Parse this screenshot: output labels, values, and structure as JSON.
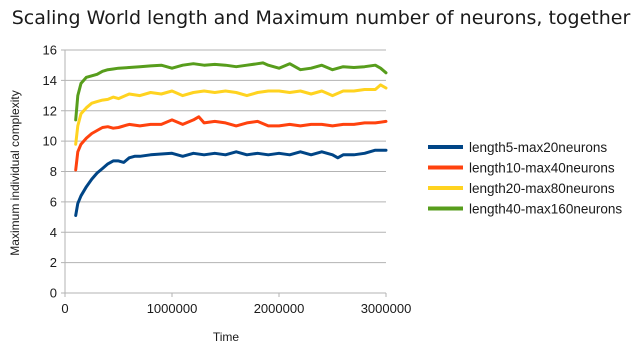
{
  "chart_data": {
    "type": "line",
    "title": "Scaling World length and Maximum number of neurons, together",
    "xlabel": "Time",
    "ylabel": "Maximum individual complexity",
    "xlim": [
      0,
      3000000
    ],
    "ylim": [
      0,
      16
    ],
    "xticks": [
      0,
      1000000,
      2000000,
      3000000
    ],
    "xtick_labels": [
      "0",
      "1000000",
      "2000000",
      "3000000"
    ],
    "yticks": [
      0,
      2,
      4,
      6,
      8,
      10,
      12,
      14,
      16
    ],
    "ytick_labels": [
      "0",
      "2",
      "4",
      "6",
      "8",
      "10",
      "12",
      "14",
      "16"
    ],
    "grid": "horizontal",
    "legend_position": "right",
    "series": [
      {
        "name": "length5-max20neurons",
        "color": "#004586",
        "x": [
          100000,
          120000,
          150000,
          200000,
          250000,
          300000,
          350000,
          400000,
          450000,
          500000,
          550000,
          600000,
          650000,
          700000,
          800000,
          900000,
          1000000,
          1100000,
          1200000,
          1300000,
          1400000,
          1500000,
          1600000,
          1700000,
          1800000,
          1900000,
          2000000,
          2100000,
          2200000,
          2300000,
          2400000,
          2500000,
          2550000,
          2600000,
          2700000,
          2800000,
          2900000,
          3000000
        ],
        "y": [
          5.1,
          5.9,
          6.4,
          7.0,
          7.5,
          7.9,
          8.2,
          8.5,
          8.7,
          8.7,
          8.6,
          8.9,
          9.0,
          9.0,
          9.1,
          9.15,
          9.2,
          9.0,
          9.2,
          9.1,
          9.2,
          9.1,
          9.3,
          9.1,
          9.2,
          9.1,
          9.2,
          9.1,
          9.3,
          9.1,
          9.3,
          9.1,
          8.9,
          9.1,
          9.1,
          9.2,
          9.4,
          9.4
        ]
      },
      {
        "name": "length10-max40neurons",
        "color": "#ff420e",
        "x": [
          100000,
          120000,
          150000,
          200000,
          250000,
          300000,
          350000,
          400000,
          450000,
          500000,
          600000,
          700000,
          800000,
          900000,
          1000000,
          1100000,
          1200000,
          1250000,
          1300000,
          1400000,
          1500000,
          1600000,
          1700000,
          1800000,
          1900000,
          2000000,
          2100000,
          2200000,
          2300000,
          2400000,
          2500000,
          2600000,
          2700000,
          2800000,
          2900000,
          3000000
        ],
        "y": [
          8.1,
          9.3,
          9.8,
          10.2,
          10.5,
          10.7,
          10.9,
          10.95,
          10.85,
          10.9,
          11.1,
          11.0,
          11.1,
          11.1,
          11.4,
          11.1,
          11.4,
          11.6,
          11.2,
          11.3,
          11.2,
          11.0,
          11.2,
          11.3,
          11.0,
          11.0,
          11.1,
          11.0,
          11.1,
          11.1,
          11.0,
          11.1,
          11.1,
          11.2,
          11.2,
          11.3
        ]
      },
      {
        "name": "length20-max80neurons",
        "color": "#ffd320",
        "x": [
          100000,
          120000,
          150000,
          200000,
          250000,
          300000,
          350000,
          400000,
          450000,
          500000,
          600000,
          700000,
          800000,
          900000,
          1000000,
          1100000,
          1200000,
          1300000,
          1400000,
          1500000,
          1600000,
          1700000,
          1800000,
          1900000,
          2000000,
          2100000,
          2200000,
          2300000,
          2400000,
          2500000,
          2600000,
          2700000,
          2800000,
          2900000,
          2950000,
          3000000
        ],
        "y": [
          9.8,
          11.0,
          11.8,
          12.2,
          12.5,
          12.6,
          12.7,
          12.75,
          12.9,
          12.8,
          13.1,
          13.0,
          13.2,
          13.1,
          13.3,
          13.0,
          13.2,
          13.3,
          13.2,
          13.3,
          13.2,
          13.0,
          13.2,
          13.3,
          13.3,
          13.2,
          13.3,
          13.1,
          13.3,
          13.0,
          13.3,
          13.3,
          13.4,
          13.4,
          13.7,
          13.5
        ]
      },
      {
        "name": "length40-max160neurons",
        "color": "#579d1c",
        "x": [
          100000,
          120000,
          150000,
          200000,
          250000,
          300000,
          350000,
          400000,
          450000,
          500000,
          600000,
          700000,
          800000,
          900000,
          1000000,
          1100000,
          1200000,
          1300000,
          1400000,
          1500000,
          1600000,
          1700000,
          1800000,
          1850000,
          1900000,
          2000000,
          2100000,
          2200000,
          2300000,
          2400000,
          2500000,
          2600000,
          2700000,
          2800000,
          2900000,
          2950000,
          3000000
        ],
        "y": [
          11.4,
          13.0,
          13.8,
          14.2,
          14.3,
          14.4,
          14.6,
          14.7,
          14.75,
          14.8,
          14.85,
          14.9,
          14.95,
          15.0,
          14.8,
          15.0,
          15.1,
          15.0,
          15.05,
          15.0,
          14.9,
          15.0,
          15.1,
          15.15,
          15.0,
          14.8,
          15.1,
          14.7,
          14.8,
          15.0,
          14.7,
          14.9,
          14.85,
          14.9,
          15.0,
          14.8,
          14.5
        ]
      }
    ]
  }
}
